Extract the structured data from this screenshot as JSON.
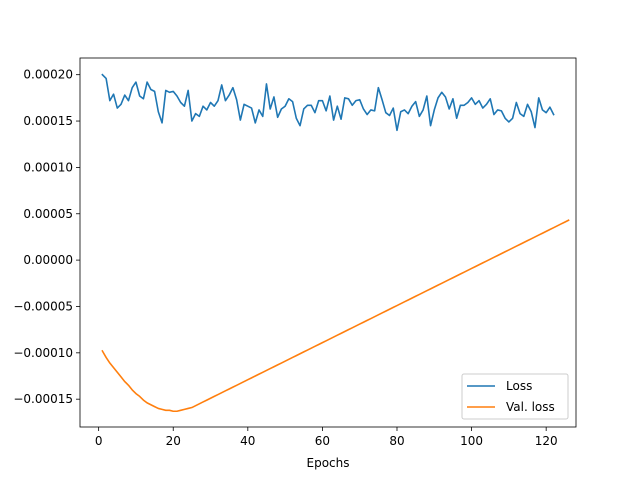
{
  "chart_data": {
    "type": "line",
    "title": "",
    "xlabel": "Epochs",
    "ylabel": "",
    "xlim": [
      -5,
      128
    ],
    "ylim": [
      -0.00018,
      0.000218
    ],
    "xticks": [
      0,
      20,
      40,
      60,
      80,
      100,
      120
    ],
    "yticks": [
      -0.00015,
      -0.0001,
      -5e-05,
      0.0,
      5e-05,
      0.0001,
      0.00015,
      0.0002
    ],
    "ytick_labels": [
      "−0.00015",
      "−0.00010",
      "−0.00005",
      "0.00000",
      "0.00005",
      "0.00010",
      "0.00015",
      "0.00020"
    ],
    "grid": false,
    "legend_position": "lower-right",
    "series": [
      {
        "name": "Loss",
        "color": "#1f77b4",
        "start_x": 1,
        "values": [
          0.0002,
          0.000196,
          0.000172,
          0.000179,
          0.000164,
          0.000168,
          0.000178,
          0.000172,
          0.000186,
          0.000192,
          0.000177,
          0.000174,
          0.000192,
          0.000184,
          0.000182,
          0.00016,
          0.000148,
          0.000183,
          0.000181,
          0.000182,
          0.000177,
          0.00017,
          0.000166,
          0.000183,
          0.00015,
          0.000158,
          0.000155,
          0.000166,
          0.000162,
          0.00017,
          0.000166,
          0.000172,
          0.000189,
          0.000172,
          0.000178,
          0.000186,
          0.000173,
          0.000151,
          0.000168,
          0.000166,
          0.000164,
          0.000148,
          0.000162,
          0.000155,
          0.00019,
          0.000163,
          0.000176,
          0.000154,
          0.000163,
          0.000166,
          0.000174,
          0.000171,
          0.000153,
          0.000145,
          0.000163,
          0.000167,
          0.000167,
          0.000159,
          0.000172,
          0.000172,
          0.000161,
          0.000177,
          0.000151,
          0.000166,
          0.000152,
          0.000175,
          0.000174,
          0.000167,
          0.000172,
          0.000173,
          0.000163,
          0.000157,
          0.000162,
          0.000161,
          0.000186,
          0.000173,
          0.000159,
          0.000156,
          0.000164,
          0.00014,
          0.00016,
          0.000162,
          0.000158,
          0.000166,
          0.000171,
          0.000155,
          0.000162,
          0.000177,
          0.000145,
          0.000162,
          0.000175,
          0.000181,
          0.000176,
          0.000163,
          0.000174,
          0.000153,
          0.000167,
          0.000167,
          0.00017,
          0.000175,
          0.000168,
          0.000172,
          0.000164,
          0.000168,
          0.000174,
          0.000157,
          0.000162,
          0.000161,
          0.000153,
          0.000149,
          0.000153,
          0.00017,
          0.000158,
          0.000155,
          0.000168,
          0.00016,
          0.000143,
          0.000175,
          0.000162,
          0.000159,
          0.000165,
          0.000157
        ]
      },
      {
        "name": "Val. loss",
        "color": "#ff7f0e",
        "start_x": 1,
        "values": [
          -9.8e-05,
          -0.000105,
          -0.000111,
          -0.000116,
          -0.000121,
          -0.000126,
          -0.000131,
          -0.000135,
          -0.00014,
          -0.000144,
          -0.000147,
          -0.000151,
          -0.000154,
          -0.000156,
          -0.000158,
          -0.00016,
          -0.000161,
          -0.000162,
          -0.000162,
          -0.000163,
          -0.000163,
          -0.000162,
          -0.000161,
          -0.00016,
          -0.000159,
          -0.000157,
          -0.000155,
          -0.000153,
          -0.000151,
          -0.000149,
          -0.000147,
          -0.000145,
          -0.000143,
          -0.000141,
          -0.000139,
          -0.000137,
          -0.000135,
          -0.000133,
          -0.000131,
          -0.000129,
          -0.000127,
          -0.000125,
          -0.000123,
          -0.000121,
          -0.000119,
          -0.000117,
          -0.000115,
          -0.000113,
          -0.000111,
          -0.000109,
          -0.000107,
          -0.000105,
          -0.000103,
          -0.000101,
          -9.9e-05,
          -9.7e-05,
          -9.5e-05,
          -9.3e-05,
          -9.1e-05,
          -8.9e-05,
          -8.7e-05,
          -8.5e-05,
          -8.3e-05,
          -8.1e-05,
          -7.9e-05,
          -7.7e-05,
          -7.5e-05,
          -7.3e-05,
          -7.1e-05,
          -6.9e-05,
          -6.7e-05,
          -6.5e-05,
          -6.3e-05,
          -6.1e-05,
          -5.9e-05,
          -5.7e-05,
          -5.5e-05,
          -5.3e-05,
          -5.1e-05,
          -4.9e-05,
          -4.7e-05,
          -4.5e-05,
          -4.3e-05,
          -4.1e-05,
          -3.9e-05,
          -3.7e-05,
          -3.5e-05,
          -3.3e-05,
          -3.1e-05,
          -2.9e-05,
          -2.7e-05,
          -2.5e-05,
          -2.3e-05,
          -2.1e-05,
          -1.9e-05,
          -1.7e-05,
          -1.5e-05,
          -1.3e-05,
          -1.1e-05,
          -9e-06,
          -7e-06,
          -5e-06,
          -3e-06,
          -1e-06,
          1e-06,
          3e-06,
          5e-06,
          7e-06,
          9e-06,
          1.1e-05,
          1.3e-05,
          1.5e-05,
          1.7e-05,
          1.9e-05,
          2.1e-05,
          2.3e-05,
          2.5e-05,
          2.7e-05,
          2.9e-05,
          3.1e-05,
          3.3e-05,
          3.5e-05,
          3.7e-05,
          3.9e-05,
          4.1e-05,
          4.3e-05
        ]
      }
    ]
  }
}
